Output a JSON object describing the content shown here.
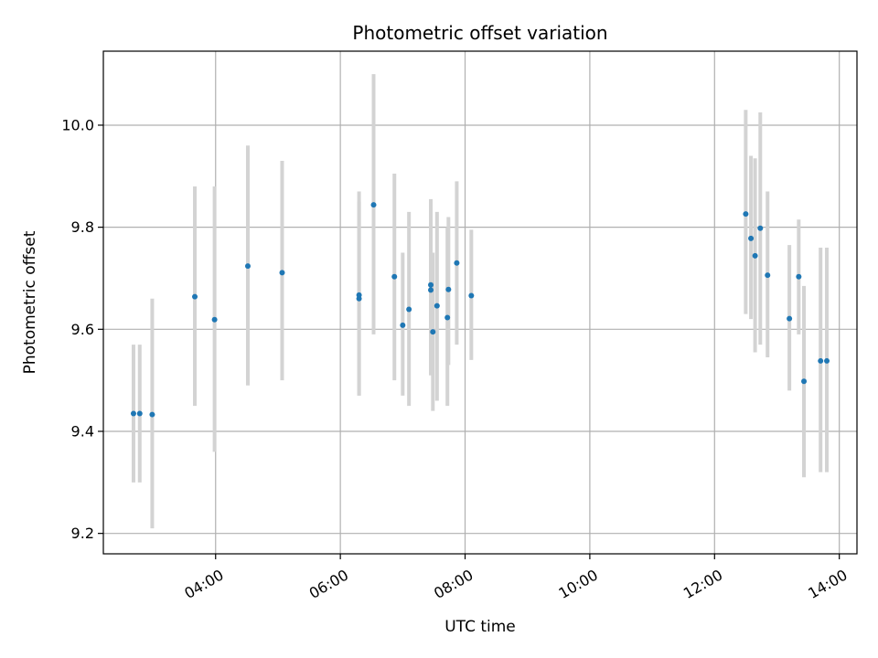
{
  "chart_data": {
    "type": "scatter",
    "title": "Photometric offset variation",
    "xlabel": "UTC time",
    "ylabel": "Photometric offset",
    "grid": true,
    "x_axis_type": "time",
    "xlim": [
      "02:12",
      "14:17"
    ],
    "ylim": [
      9.16,
      10.145
    ],
    "x_ticks": [
      "04:00",
      "06:00",
      "08:00",
      "10:00",
      "12:00",
      "14:00"
    ],
    "y_ticks": [
      "9.2",
      "9.4",
      "9.6",
      "9.8",
      "10.0"
    ],
    "colors": {
      "point": "#1f77b4",
      "errorbar": "#d3d3d3",
      "grid": "#b0b0b0",
      "axes": "#000000"
    },
    "series": [
      {
        "points": [
          {
            "x": "02:41",
            "y": 9.435,
            "ylow": 9.3,
            "yhigh": 9.57
          },
          {
            "x": "02:47",
            "y": 9.435,
            "ylow": 9.3,
            "yhigh": 9.57
          },
          {
            "x": "02:59",
            "y": 9.433,
            "ylow": 9.21,
            "yhigh": 9.66
          },
          {
            "x": "03:40",
            "y": 9.664,
            "ylow": 9.45,
            "yhigh": 9.88
          },
          {
            "x": "03:59",
            "y": 9.619,
            "ylow": 9.36,
            "yhigh": 9.88
          },
          {
            "x": "04:31",
            "y": 9.724,
            "ylow": 9.49,
            "yhigh": 9.96
          },
          {
            "x": "05:04",
            "y": 9.711,
            "ylow": 9.5,
            "yhigh": 9.93
          },
          {
            "x": "06:18",
            "y": 9.66,
            "ylow": 9.47,
            "yhigh": 9.85
          },
          {
            "x": "06:18",
            "y": 9.667,
            "ylow": 9.47,
            "yhigh": 9.87
          },
          {
            "x": "06:32",
            "y": 9.844,
            "ylow": 9.59,
            "yhigh": 10.1
          },
          {
            "x": "06:52",
            "y": 9.703,
            "ylow": 9.5,
            "yhigh": 9.905
          },
          {
            "x": "07:00",
            "y": 9.608,
            "ylow": 9.47,
            "yhigh": 9.75
          },
          {
            "x": "07:06",
            "y": 9.639,
            "ylow": 9.45,
            "yhigh": 9.83
          },
          {
            "x": "07:27",
            "y": 9.687,
            "ylow": 9.51,
            "yhigh": 9.855
          },
          {
            "x": "07:27",
            "y": 9.677,
            "ylow": 9.51,
            "yhigh": 9.84
          },
          {
            "x": "07:29",
            "y": 9.595,
            "ylow": 9.44,
            "yhigh": 9.75
          },
          {
            "x": "07:33",
            "y": 9.646,
            "ylow": 9.46,
            "yhigh": 9.83
          },
          {
            "x": "07:43",
            "y": 9.623,
            "ylow": 9.45,
            "yhigh": 9.8
          },
          {
            "x": "07:44",
            "y": 9.678,
            "ylow": 9.53,
            "yhigh": 9.82
          },
          {
            "x": "07:52",
            "y": 9.73,
            "ylow": 9.57,
            "yhigh": 9.89
          },
          {
            "x": "08:06",
            "y": 9.666,
            "ylow": 9.54,
            "yhigh": 9.795
          },
          {
            "x": "12:30",
            "y": 9.826,
            "ylow": 9.63,
            "yhigh": 10.03
          },
          {
            "x": "12:35",
            "y": 9.778,
            "ylow": 9.62,
            "yhigh": 9.94
          },
          {
            "x": "12:39",
            "y": 9.744,
            "ylow": 9.555,
            "yhigh": 9.935
          },
          {
            "x": "12:44",
            "y": 9.798,
            "ylow": 9.57,
            "yhigh": 10.025
          },
          {
            "x": "12:51",
            "y": 9.706,
            "ylow": 9.545,
            "yhigh": 9.87
          },
          {
            "x": "13:12",
            "y": 9.621,
            "ylow": 9.48,
            "yhigh": 9.765
          },
          {
            "x": "13:21",
            "y": 9.703,
            "ylow": 9.59,
            "yhigh": 9.815
          },
          {
            "x": "13:26",
            "y": 9.498,
            "ylow": 9.31,
            "yhigh": 9.685
          },
          {
            "x": "13:42",
            "y": 9.538,
            "ylow": 9.32,
            "yhigh": 9.76
          },
          {
            "x": "13:48",
            "y": 9.538,
            "ylow": 9.32,
            "yhigh": 9.76
          }
        ]
      }
    ]
  }
}
